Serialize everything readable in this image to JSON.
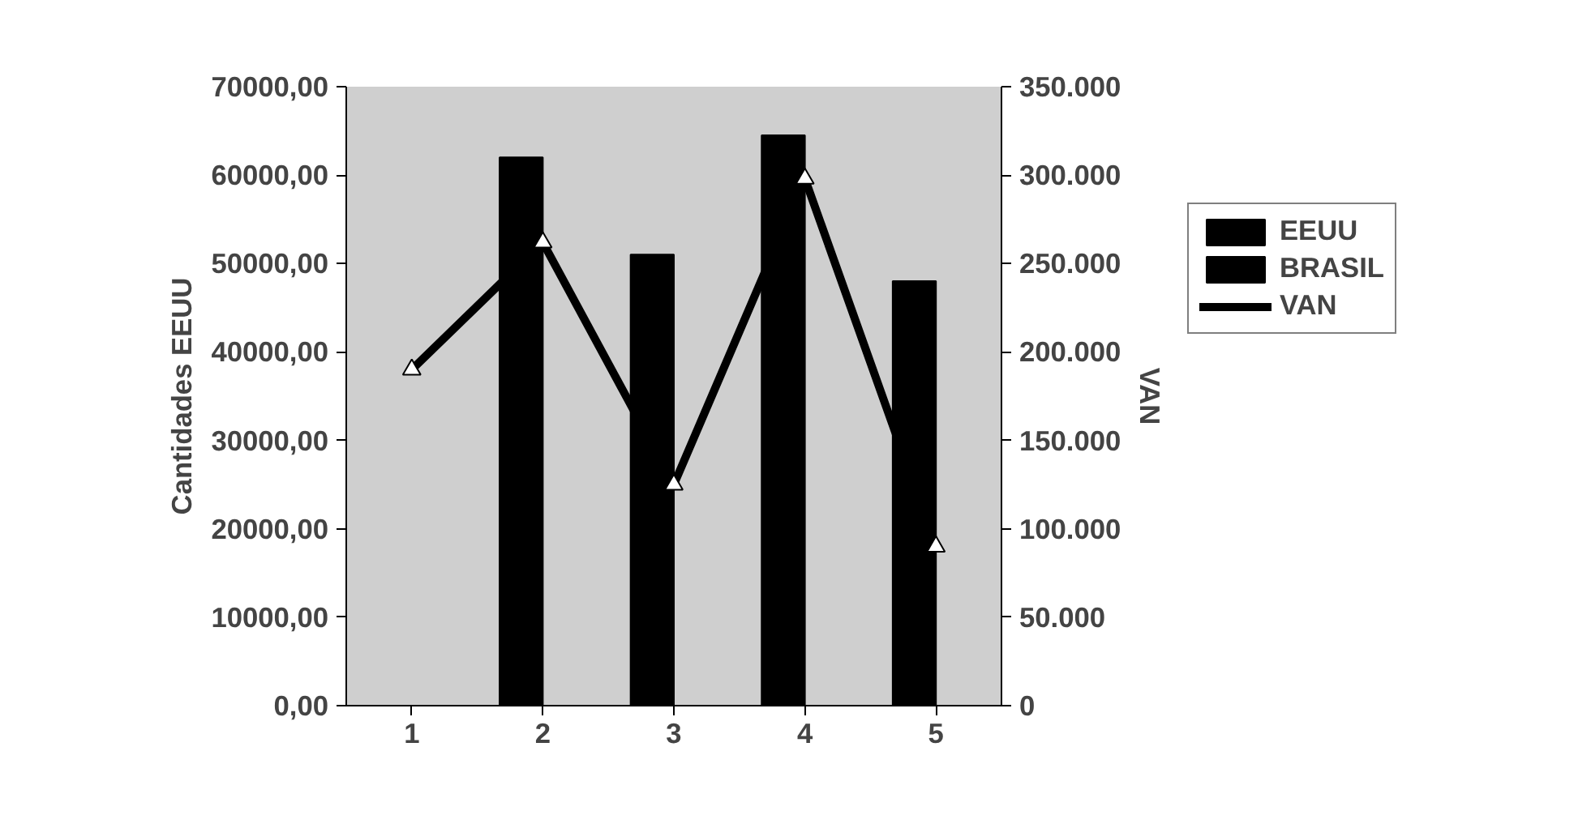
{
  "chart_data": {
    "type": "bar",
    "ylabel": "Cantidades EEUU",
    "y2label": "VAN",
    "categories": [
      "1",
      "2",
      "3",
      "4",
      "5"
    ],
    "series": [
      {
        "name": "EEUU",
        "color": "#000000",
        "values": [
          null,
          62000,
          51000,
          64500,
          48000
        ]
      },
      {
        "name": "BRASIL",
        "color": "#000000",
        "values": [
          null,
          null,
          null,
          null,
          null
        ]
      },
      {
        "name": "VAN",
        "type": "line",
        "axis": "y2",
        "color": "#000000",
        "marker": "triangle",
        "line_style": "solid",
        "values": [
          190000,
          262000,
          125000,
          298000,
          90000
        ]
      }
    ],
    "ylim": [
      0,
      70000
    ],
    "yticks": [
      {
        "value": 0,
        "label": "0,00"
      },
      {
        "value": 10000,
        "label": "10000,00"
      },
      {
        "value": 20000,
        "label": "20000,00"
      },
      {
        "value": 30000,
        "label": "30000,00"
      },
      {
        "value": 40000,
        "label": "40000,00"
      },
      {
        "value": 50000,
        "label": "50000,00"
      },
      {
        "value": 60000,
        "label": "60000,00"
      },
      {
        "value": 70000,
        "label": "70000,00"
      }
    ],
    "y2lim": [
      0,
      350000
    ],
    "y2ticks": [
      0,
      {
        "value": 50000,
        "label": "50.000"
      },
      {
        "value": 100000,
        "label": "100.000"
      },
      {
        "value": 150000,
        "label": "150.000"
      },
      {
        "value": 200000,
        "label": "200.000"
      },
      {
        "value": 250000,
        "label": "250.000"
      },
      {
        "value": 300000,
        "label": "300.000"
      },
      {
        "value": 350000,
        "label": "350.000"
      }
    ],
    "grid": false,
    "legend": "right"
  }
}
